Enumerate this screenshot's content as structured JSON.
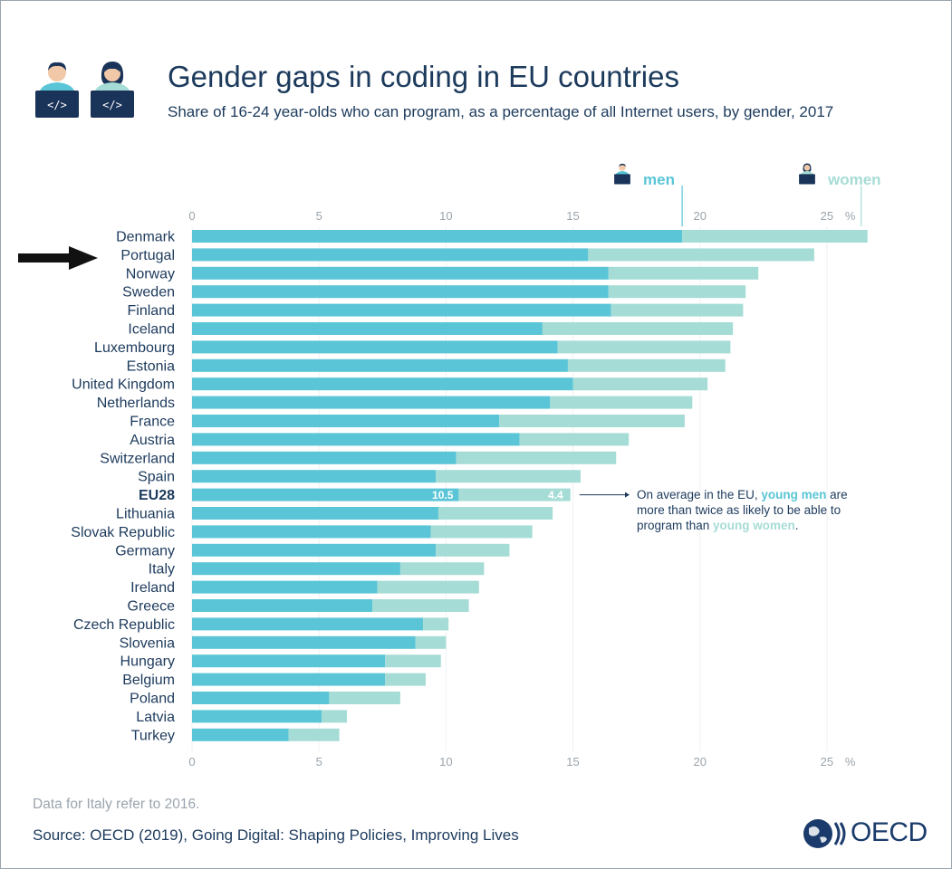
{
  "header": {
    "title": "Gender gaps in coding in EU countries",
    "subtitle": "Share of 16-24 year-olds who can program, as a percentage of all Internet users, by gender, 2017",
    "icons": [
      "man-coder-icon",
      "woman-coder-icon"
    ]
  },
  "legend": {
    "men_label": "men",
    "women_label": "women"
  },
  "annotation": {
    "part1": "On average in the EU, ",
    "men_highlight": "young men",
    "part2": " are more than twice as likely to be able to program than ",
    "women_highlight": "young women",
    "part3": "."
  },
  "footer": {
    "note": "Data for Italy refer to 2016.",
    "source": "Source: OECD (2019), Going Digital: Shaping Policies, Improving Lives",
    "logo_text": "OECD"
  },
  "colors": {
    "men": "#5ac5d6",
    "women": "#a6dcd6",
    "text": "#1c3a5c",
    "axis": "#9aa4ad",
    "grid": "#eef1f3",
    "arrow": "#111111"
  },
  "chart_data": {
    "type": "bar",
    "orientation": "horizontal",
    "stacked": true,
    "title": "Gender gaps in coding in EU countries",
    "xlabel": "%",
    "xlim": [
      0,
      27.5
    ],
    "xticks": [
      0,
      5,
      10,
      15,
      20,
      25
    ],
    "x_unit": "%",
    "highlight_category": "EU28",
    "value_labels": {
      "EU28": [
        "10.5",
        "4.4"
      ]
    },
    "categories": [
      "Denmark",
      "Portugal",
      "Norway",
      "Sweden",
      "Finland",
      "Iceland",
      "Luxembourg",
      "Estonia",
      "United Kingdom",
      "Netherlands",
      "France",
      "Austria",
      "Switzerland",
      "Spain",
      "EU28",
      "Lithuania",
      "Slovak Republic",
      "Germany",
      "Italy",
      "Ireland",
      "Greece",
      "Czech Republic",
      "Slovenia",
      "Hungary",
      "Belgium",
      "Poland",
      "Latvia",
      "Turkey"
    ],
    "series": [
      {
        "name": "men",
        "values": [
          19.3,
          15.6,
          16.4,
          16.4,
          16.5,
          13.8,
          14.4,
          14.8,
          15.0,
          14.1,
          12.1,
          12.9,
          10.4,
          9.6,
          10.5,
          9.7,
          9.4,
          9.6,
          8.2,
          7.3,
          7.1,
          9.1,
          8.8,
          7.6,
          7.6,
          5.4,
          5.1,
          3.8
        ]
      },
      {
        "name": "women",
        "values": [
          7.3,
          8.9,
          5.9,
          5.4,
          5.2,
          7.5,
          6.8,
          6.2,
          5.3,
          5.6,
          7.3,
          4.3,
          6.3,
          5.7,
          4.4,
          4.5,
          4.0,
          2.9,
          3.3,
          4.0,
          3.8,
          1.0,
          1.2,
          2.2,
          1.6,
          2.8,
          1.0,
          2.0
        ]
      }
    ]
  }
}
